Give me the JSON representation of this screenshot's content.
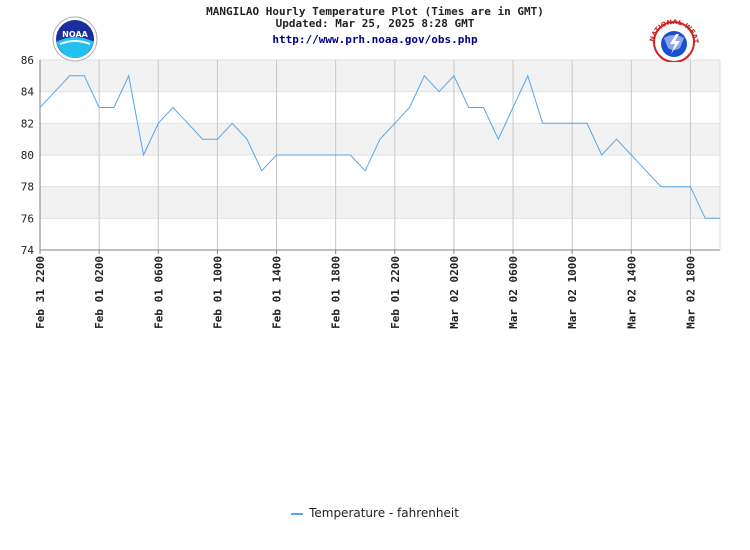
{
  "header": {
    "title": "MANGILAO Hourly Temperature Plot (Times are in GMT)",
    "updated": "Updated: Mar 25, 2025 8:28 GMT",
    "url": "http://www.prh.noaa.gov/obs.php"
  },
  "logos": {
    "left": {
      "icon": "noaa-logo",
      "text": "NOAA"
    },
    "right": {
      "icon": "nws-logo",
      "text": "NATIONAL WEATHER SERVICE"
    }
  },
  "colors": {
    "line": "#5aa5e6",
    "band": "#f2f2f2",
    "grid": "#c8c8c8",
    "axis": "#808080"
  },
  "chart_data": {
    "type": "line",
    "ylim": [
      74,
      86
    ],
    "yticks": [
      "74",
      "76",
      "78",
      "80",
      "82",
      "84",
      "86"
    ],
    "xlabels": [
      "Feb 31 2200",
      "Feb 01 0200",
      "Feb 01 0600",
      "Feb 01 1000",
      "Feb 01 1400",
      "Feb 01 1800",
      "Feb 01 2200",
      "Mar 02 0200",
      "Mar 02 0600",
      "Mar 02 1000",
      "Mar 02 1400",
      "Mar 02 1800"
    ],
    "hours_per_label": 4,
    "hours_total": 46,
    "series": [
      {
        "name": "Temperature - fahrenheit",
        "hours": [
          0,
          1,
          2,
          3,
          4,
          5,
          6,
          7,
          8,
          9,
          10,
          11,
          12,
          13,
          14,
          15,
          16,
          18,
          19,
          20,
          21,
          22,
          23,
          24,
          25,
          26,
          27,
          28,
          29,
          30,
          31,
          32,
          33,
          34,
          35,
          36,
          37,
          38,
          39,
          40,
          41,
          42,
          43,
          44,
          45,
          46
        ],
        "values": [
          83,
          84,
          85,
          85,
          83,
          83,
          85,
          80,
          82,
          83,
          82,
          81,
          81,
          82,
          81,
          79,
          80,
          80,
          80,
          80,
          80,
          79,
          81,
          82,
          83,
          85,
          84,
          85,
          83,
          83,
          81,
          83,
          85,
          82,
          82,
          82,
          82,
          80,
          81,
          80,
          79,
          78,
          78,
          78,
          76,
          76
        ]
      }
    ]
  }
}
